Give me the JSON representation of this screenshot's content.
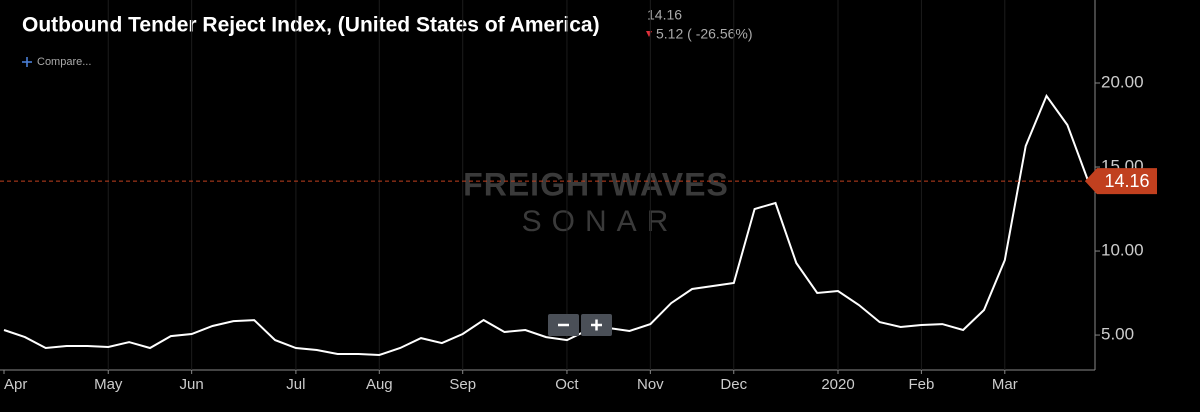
{
  "chart_data": {
    "type": "line",
    "title": "Outbound Tender Reject Index, (United States of America)",
    "change_label": "5.12 ( -26.56%)",
    "compare": "Compare...",
    "watermark": [
      "FREIGHTWAVES",
      "SONAR"
    ],
    "month_labels": [
      "Apr",
      "May",
      "Jun",
      "Jul",
      "Aug",
      "Sep",
      "Oct",
      "Nov",
      "Dec",
      "2020",
      "Feb",
      "Mar"
    ],
    "categories": [
      "Apr",
      null,
      null,
      null,
      null,
      "May",
      null,
      null,
      null,
      "Jun",
      null,
      null,
      null,
      null,
      "Jul",
      null,
      null,
      null,
      "Aug",
      null,
      null,
      null,
      "Sep",
      null,
      null,
      null,
      null,
      "Oct",
      null,
      null,
      null,
      "Nov",
      null,
      null,
      null,
      "Dec",
      null,
      null,
      null,
      null,
      "2020",
      null,
      null,
      null,
      "Feb",
      null,
      null,
      null,
      "Mar",
      null,
      null,
      null,
      null
    ],
    "series": [
      {
        "name": "Outbound Tender Reject Index",
        "color": "#ffffff",
        "values": [
          5.3,
          4.88,
          4.23,
          4.35,
          4.35,
          4.29,
          4.58,
          4.23,
          4.94,
          5.06,
          5.54,
          5.83,
          5.89,
          4.7,
          4.23,
          4.11,
          3.87,
          3.87,
          3.81,
          4.23,
          4.82,
          4.52,
          5.06,
          5.89,
          5.18,
          5.3,
          4.88,
          4.7,
          5.3,
          5.42,
          5.24,
          5.65,
          6.9,
          7.74,
          7.92,
          8.1,
          12.5,
          12.86,
          9.29,
          7.5,
          7.62,
          6.79,
          5.77,
          5.48,
          5.6,
          5.65,
          5.3,
          6.49,
          9.46,
          16.25,
          19.23,
          17.5,
          14.16
        ]
      }
    ],
    "ylim": [
      2.92,
      24.94
    ],
    "yticks": [
      {
        "value": 5,
        "label": "5.00"
      },
      {
        "value": 10,
        "label": "10.00"
      },
      {
        "value": 15,
        "label": "15.00"
      },
      {
        "value": 20,
        "label": "20.00"
      }
    ],
    "grid": true,
    "last_marker_color": "#c1401f"
  }
}
